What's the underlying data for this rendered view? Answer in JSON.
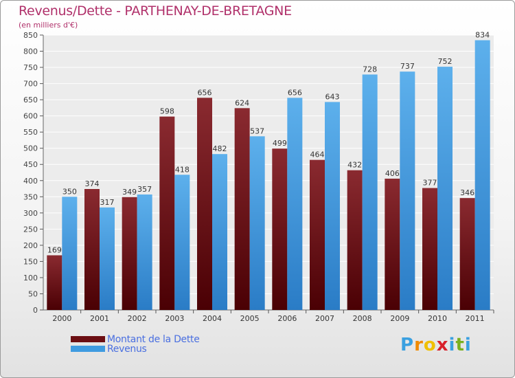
{
  "header": {
    "title": "Revenus/Dette - PARTHENAY-DE-BRETAGNE",
    "subtitle": "(en milliers d'€)"
  },
  "chart_data": {
    "type": "bar",
    "categories": [
      "2000",
      "2001",
      "2002",
      "2003",
      "2004",
      "2005",
      "2006",
      "2007",
      "2008",
      "2009",
      "2010",
      "2011"
    ],
    "series": [
      {
        "name": "Montant de la Dette",
        "color": "#6b0e12",
        "values": [
          169,
          374,
          349,
          598,
          656,
          624,
          499,
          464,
          432,
          406,
          377,
          346
        ]
      },
      {
        "name": "Revenus",
        "color": "#3f9be0",
        "values": [
          350,
          317,
          357,
          418,
          482,
          537,
          656,
          643,
          728,
          737,
          752,
          834
        ]
      }
    ],
    "ylim": [
      0,
      850
    ],
    "yticks": [
      0,
      50,
      100,
      150,
      200,
      250,
      300,
      350,
      400,
      450,
      500,
      550,
      600,
      650,
      700,
      750,
      800,
      850
    ],
    "grid": true,
    "legend_position": "bottom-left"
  },
  "legend": {
    "items": [
      {
        "label": "Montant de la Dette",
        "color": "#6b0e12"
      },
      {
        "label": "Revenus",
        "color": "#3f9be0"
      }
    ]
  },
  "logo": {
    "letters": [
      "P",
      "r",
      "o",
      "x",
      "i",
      "t",
      "i"
    ],
    "colors": [
      "#3aa0e0",
      "#f08a00",
      "#f0c000",
      "#d8202a",
      "#3aa0e0",
      "#7ab020",
      "#3aa0e0"
    ]
  }
}
